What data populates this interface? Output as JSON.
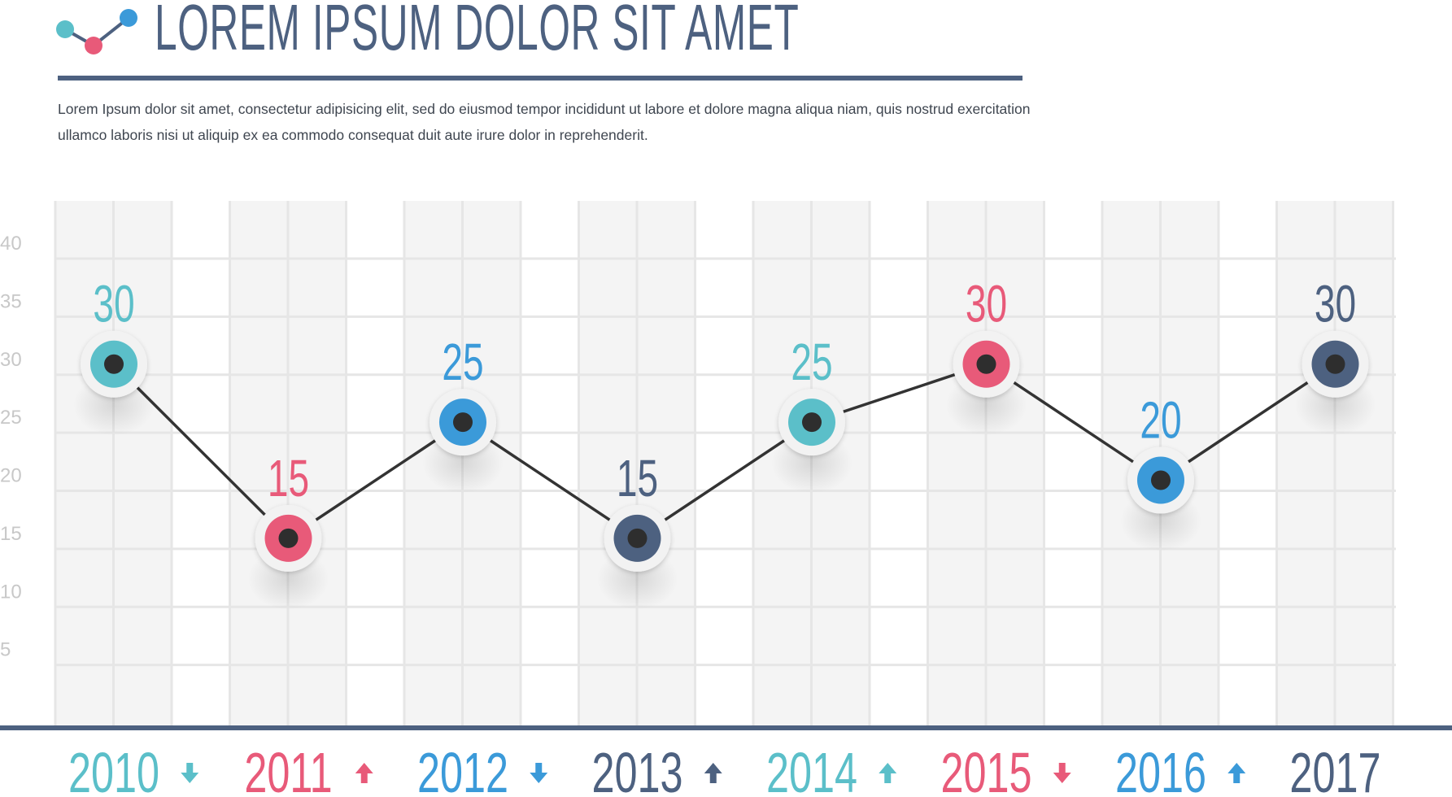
{
  "header": {
    "title": "LOREM IPSUM DOLOR SIT AMET",
    "description": "Lorem Ipsum dolor sit amet, consectetur adipisicing elit, sed do eiusmod tempor incididunt ut labore et dolore magna aliqua niam, quis nostrud exercitation ullamco laboris nisi ut aliquip ex ea commodo consequat duit aute irure dolor in reprehenderit."
  },
  "colors": {
    "teal": "#5bbfc9",
    "pink": "#e85a79",
    "blue": "#3b9ad9",
    "navy": "#4d6180",
    "line": "#333333",
    "grid": "#e6e6e6",
    "band": "#f4f4f4",
    "axis_text": "#c8c8c8"
  },
  "chart_data": {
    "type": "line",
    "categories": [
      "2010",
      "2011",
      "2012",
      "2013",
      "2014",
      "2015",
      "2016",
      "2017"
    ],
    "values": [
      30,
      15,
      25,
      15,
      25,
      30,
      20,
      30
    ],
    "point_colors": [
      "teal",
      "pink",
      "blue",
      "navy",
      "teal",
      "pink",
      "blue",
      "navy"
    ],
    "trend_arrows": [
      {
        "direction": "down",
        "color": "teal"
      },
      {
        "direction": "up",
        "color": "pink"
      },
      {
        "direction": "down",
        "color": "blue"
      },
      {
        "direction": "up",
        "color": "navy"
      },
      {
        "direction": "up",
        "color": "teal"
      },
      {
        "direction": "down",
        "color": "pink"
      },
      {
        "direction": "up",
        "color": "blue"
      }
    ],
    "y_ticks": [
      "5",
      "10",
      "15",
      "20",
      "25",
      "30",
      "35",
      "40"
    ],
    "ylim": [
      0,
      40
    ],
    "grid": true,
    "title": "",
    "xlabel": "",
    "ylabel": ""
  }
}
